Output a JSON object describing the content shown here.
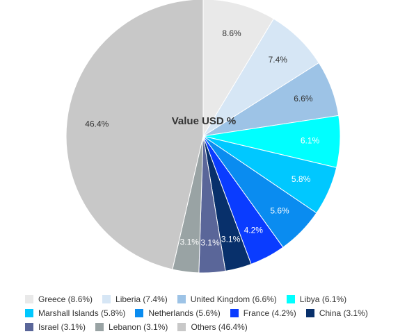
{
  "chart_data": {
    "type": "pie",
    "title": "Value USD %",
    "legend_position": "bottom",
    "slices": [
      {
        "name": "Greece",
        "value": 8.6,
        "label": "8.6%",
        "legend": "Greece (8.6%)",
        "color": "#e9e9e9",
        "label_color": "#333333"
      },
      {
        "name": "Liberia",
        "value": 7.4,
        "label": "7.4%",
        "legend": "Liberia (7.4%)",
        "color": "#d6e6f5",
        "label_color": "#333333"
      },
      {
        "name": "United Kingdom",
        "value": 6.6,
        "label": "6.6%",
        "legend": "United Kingdom (6.6%)",
        "color": "#9dc3e6",
        "label_color": "#333333"
      },
      {
        "name": "Libya",
        "value": 6.1,
        "label": "6.1%",
        "legend": "Libya (6.1%)",
        "color": "#00ffff",
        "label_color": "#ffffff"
      },
      {
        "name": "Marshall Islands",
        "value": 5.8,
        "label": "5.8%",
        "legend": "Marshall Islands (5.8%)",
        "color": "#00c8ff",
        "label_color": "#ffffff"
      },
      {
        "name": "Netherlands",
        "value": 5.6,
        "label": "5.6%",
        "legend": "Netherlands (5.6%)",
        "color": "#0a8cf0",
        "label_color": "#ffffff"
      },
      {
        "name": "France",
        "value": 4.2,
        "label": "4.2%",
        "legend": "France (4.2%)",
        "color": "#0a3cff",
        "label_color": "#ffffff"
      },
      {
        "name": "China",
        "value": 3.1,
        "label": "3.1%",
        "legend": "China (3.1%)",
        "color": "#08306b",
        "label_color": "#ffffff"
      },
      {
        "name": "Israel",
        "value": 3.1,
        "label": "3.1%",
        "legend": "Israel (3.1%)",
        "color": "#5a6699",
        "label_color": "#ffffff"
      },
      {
        "name": "Lebanon",
        "value": 3.1,
        "label": "3.1%",
        "legend": "Lebanon (3.1%)",
        "color": "#99a3a4",
        "label_color": "#ffffff"
      },
      {
        "name": "Others",
        "value": 46.4,
        "label": "46.4%",
        "legend": "Others (46.4%)",
        "color": "#c8c8c8",
        "label_color": "#333333"
      }
    ]
  }
}
